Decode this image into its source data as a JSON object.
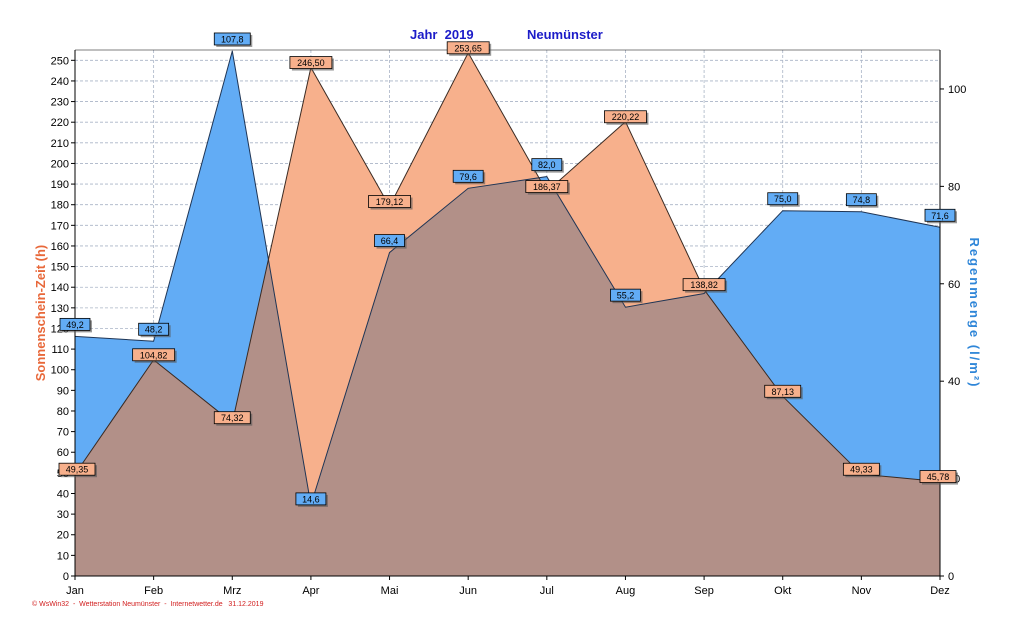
{
  "header": {
    "title": "Jahr  2019",
    "location": "Neumünster"
  },
  "footer": {
    "text": "© WsWin32  -  Wetterstation Neumünster  -  Internetwetter.de   31.12.2019"
  },
  "colors": {
    "sunshine_fill": "#f7b08c",
    "sunshine_label": "#e8683a",
    "rain_fill": "#62acf5",
    "rain_label": "#2f86d8",
    "overlap_fill": "#b29088",
    "grid": "#a9b4c6"
  },
  "chart_data": {
    "type": "area",
    "categories": [
      "Jan",
      "Feb",
      "Mrz",
      "Apr",
      "Mai",
      "Jun",
      "Jul",
      "Aug",
      "Sep",
      "Okt",
      "Nov",
      "Dez"
    ],
    "left_axis": {
      "label": "Sonnenschein-Zeit  (h)",
      "range": [
        0,
        255
      ],
      "ticks": [
        0,
        10,
        20,
        30,
        40,
        50,
        60,
        70,
        80,
        90,
        100,
        110,
        120,
        130,
        140,
        150,
        160,
        170,
        180,
        190,
        200,
        210,
        220,
        230,
        240,
        250
      ]
    },
    "right_axis": {
      "label": "Regenmenge  (l/m²)",
      "range": [
        0,
        108
      ],
      "ticks": [
        0,
        20,
        40,
        60,
        80,
        100
      ]
    },
    "grid": true,
    "series": [
      {
        "key": "sunshine",
        "axis": "left",
        "values": [
          49.35,
          104.82,
          74.32,
          246.5,
          179.12,
          253.65,
          186.37,
          220.22,
          138.82,
          87.13,
          49.33,
          45.78
        ],
        "labels": [
          "49,35",
          "104,82",
          "74,32",
          "246,50",
          "179,12",
          "253,65",
          "186,37",
          "220,22",
          "138,82",
          "87,13",
          "49,33",
          "45,78"
        ]
      },
      {
        "key": "rain",
        "axis": "right",
        "values": [
          49.2,
          48.2,
          107.8,
          14.6,
          66.4,
          79.6,
          82.0,
          55.2,
          58.0,
          75.0,
          74.8,
          71.6
        ],
        "labels": [
          "49,2",
          "48,2",
          "107,8",
          "14,6",
          "66,4",
          "79,6",
          "82,0",
          "55,2",
          "",
          "75,0",
          "74,8",
          "71,6"
        ]
      }
    ]
  }
}
